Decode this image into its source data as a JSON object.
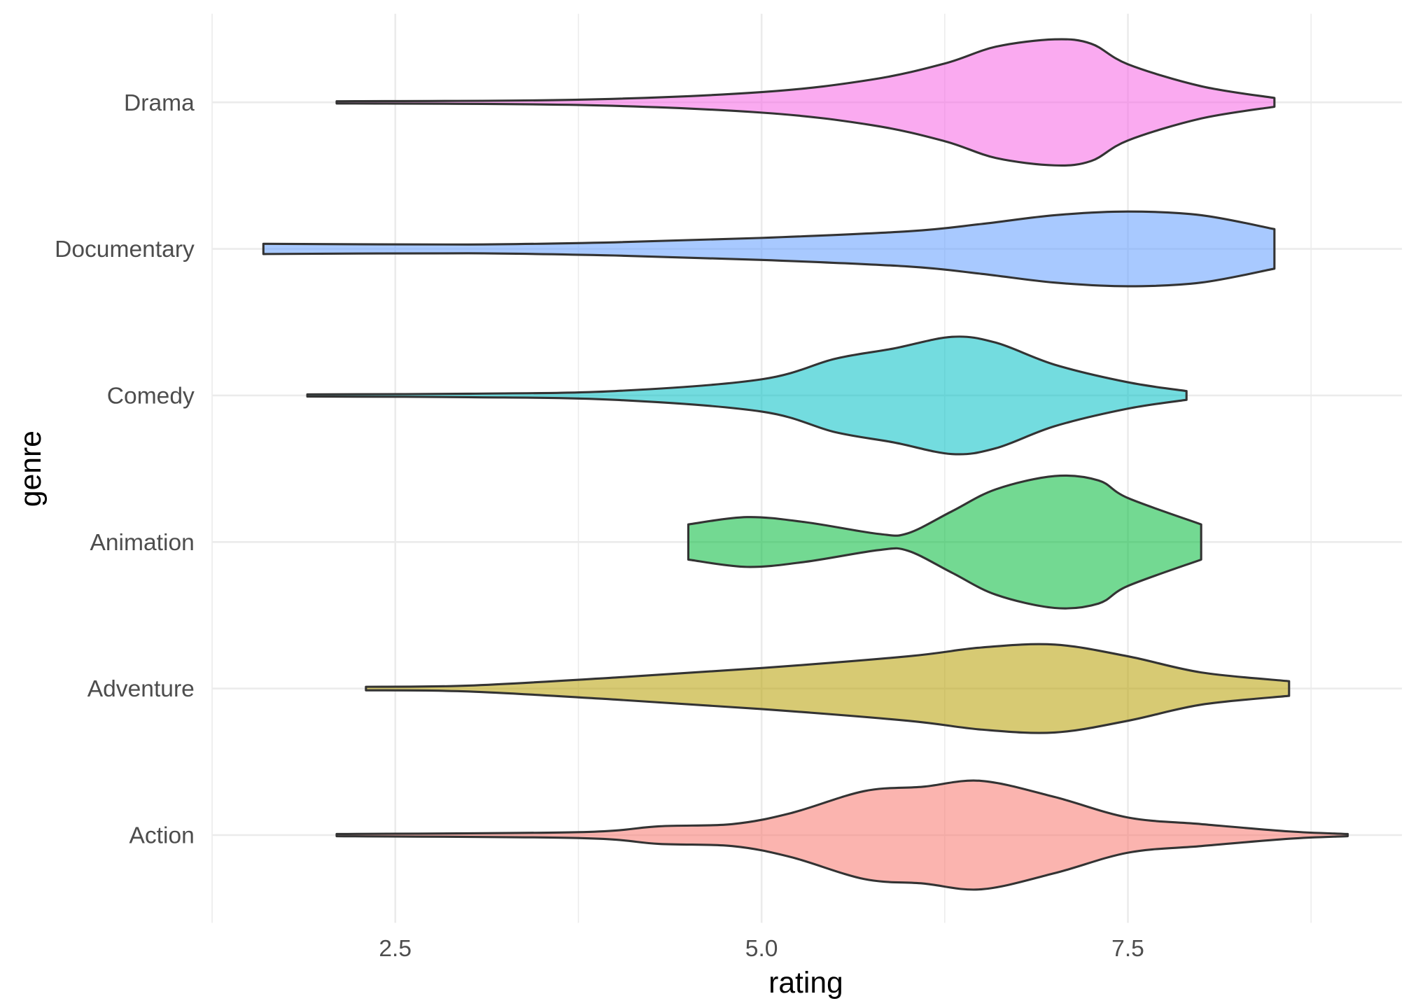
{
  "chart_data": {
    "type": "violin",
    "title": "",
    "xlabel": "rating",
    "ylabel": "genre",
    "xlim": [
      1.0,
      9.3
    ],
    "x_ticks": [
      2.5,
      5.0,
      7.5
    ],
    "x_tick_labels": [
      "2.5",
      "5.0",
      "7.5"
    ],
    "grid": true,
    "legend": "none",
    "categories": [
      "Action",
      "Adventure",
      "Animation",
      "Comedy",
      "Documentary",
      "Drama"
    ],
    "series": [
      {
        "name": "Action",
        "color": "#F8766D",
        "range": [
          2.1,
          9.0
        ],
        "density": [
          [
            2.1,
            0.006
          ],
          [
            3.75,
            0.02
          ],
          [
            4.3,
            0.06
          ],
          [
            4.8,
            0.075
          ],
          [
            5.2,
            0.15
          ],
          [
            5.7,
            0.3
          ],
          [
            6.1,
            0.33
          ],
          [
            6.5,
            0.37
          ],
          [
            7.0,
            0.26
          ],
          [
            7.5,
            0.12
          ],
          [
            8.0,
            0.075
          ],
          [
            8.6,
            0.025
          ],
          [
            9.0,
            0.006
          ]
        ]
      },
      {
        "name": "Adventure",
        "color": "#B79F00",
        "range": [
          2.3,
          8.6
        ],
        "density": [
          [
            2.3,
            0.012
          ],
          [
            3.0,
            0.02
          ],
          [
            4.0,
            0.075
          ],
          [
            5.0,
            0.14
          ],
          [
            6.0,
            0.22
          ],
          [
            6.5,
            0.28
          ],
          [
            7.0,
            0.3
          ],
          [
            7.5,
            0.22
          ],
          [
            8.0,
            0.11
          ],
          [
            8.6,
            0.05
          ]
        ]
      },
      {
        "name": "Animation",
        "color": "#00BA38",
        "range": [
          4.5,
          8.0
        ],
        "density": [
          [
            4.5,
            0.12
          ],
          [
            4.9,
            0.17
          ],
          [
            5.3,
            0.135
          ],
          [
            5.8,
            0.055
          ],
          [
            6.0,
            0.06
          ],
          [
            6.3,
            0.21
          ],
          [
            6.6,
            0.36
          ],
          [
            7.0,
            0.45
          ],
          [
            7.3,
            0.42
          ],
          [
            7.5,
            0.3
          ],
          [
            8.0,
            0.12
          ]
        ]
      },
      {
        "name": "Comedy",
        "color": "#00BFC4",
        "range": [
          1.9,
          7.9
        ],
        "density": [
          [
            1.9,
            0.006
          ],
          [
            3.0,
            0.012
          ],
          [
            4.0,
            0.03
          ],
          [
            5.0,
            0.11
          ],
          [
            5.5,
            0.25
          ],
          [
            5.9,
            0.32
          ],
          [
            6.3,
            0.4
          ],
          [
            6.6,
            0.36
          ],
          [
            7.0,
            0.21
          ],
          [
            7.5,
            0.09
          ],
          [
            7.9,
            0.03
          ]
        ]
      },
      {
        "name": "Documentary",
        "color": "#619CFF",
        "range": [
          1.6,
          8.5
        ],
        "density": [
          [
            1.6,
            0.035
          ],
          [
            3.0,
            0.03
          ],
          [
            4.0,
            0.045
          ],
          [
            5.0,
            0.075
          ],
          [
            6.0,
            0.12
          ],
          [
            6.5,
            0.17
          ],
          [
            7.0,
            0.23
          ],
          [
            7.5,
            0.255
          ],
          [
            8.0,
            0.23
          ],
          [
            8.5,
            0.135
          ]
        ]
      },
      {
        "name": "Drama",
        "color": "#F564E3",
        "range": [
          2.1,
          8.5
        ],
        "density": [
          [
            2.1,
            0.006
          ],
          [
            3.75,
            0.018
          ],
          [
            5.0,
            0.07
          ],
          [
            5.75,
            0.155
          ],
          [
            6.25,
            0.265
          ],
          [
            6.6,
            0.38
          ],
          [
            7.0,
            0.43
          ],
          [
            7.25,
            0.4
          ],
          [
            7.5,
            0.26
          ],
          [
            8.0,
            0.11
          ],
          [
            8.5,
            0.03
          ]
        ]
      }
    ]
  }
}
